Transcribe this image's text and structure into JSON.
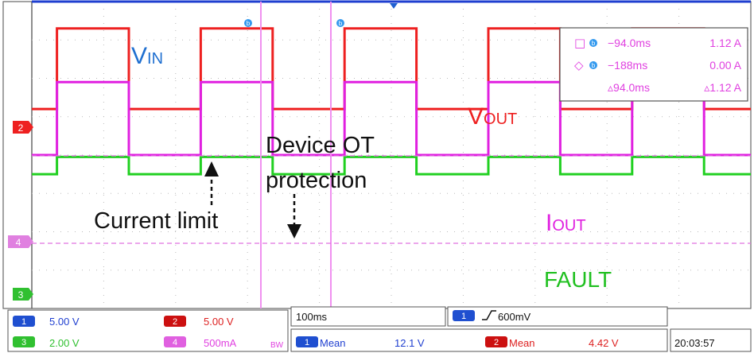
{
  "chart_data": {
    "type": "line",
    "time_per_div": "100ms",
    "divisions": 10,
    "series": [
      {
        "name": "VIN",
        "channel": 1,
        "color": "#1f3fd0",
        "values_div": [
          [
            0,
            4.0
          ],
          [
            10,
            4.0
          ]
        ]
      },
      {
        "name": "VOUT",
        "channel": 2,
        "color": "#ee2020",
        "values_div": [
          [
            0,
            1.2
          ],
          [
            0.35,
            1.2
          ],
          [
            0.35,
            3.3
          ],
          [
            1.35,
            3.3
          ],
          [
            1.35,
            1.2
          ],
          [
            2.35,
            1.2
          ],
          [
            2.35,
            3.3
          ],
          [
            3.35,
            3.3
          ],
          [
            3.35,
            1.2
          ],
          [
            4.35,
            1.2
          ],
          [
            4.35,
            3.3
          ],
          [
            5.35,
            3.3
          ],
          [
            5.35,
            1.2
          ],
          [
            6.35,
            1.2
          ],
          [
            6.35,
            3.3
          ],
          [
            7.35,
            3.3
          ],
          [
            7.35,
            1.2
          ],
          [
            8.35,
            1.2
          ],
          [
            8.35,
            3.3
          ],
          [
            9.35,
            3.3
          ],
          [
            9.35,
            1.2
          ],
          [
            10,
            1.2
          ]
        ]
      },
      {
        "name": "IOUT",
        "channel": 4,
        "color": "#e020e0",
        "values_div": [
          [
            0,
            0.0
          ],
          [
            0.35,
            0.0
          ],
          [
            0.35,
            1.9
          ],
          [
            1.35,
            1.9
          ],
          [
            1.35,
            0.0
          ],
          [
            2.35,
            0.0
          ],
          [
            2.35,
            1.9
          ],
          [
            3.35,
            1.9
          ],
          [
            3.35,
            0.0
          ],
          [
            4.35,
            0.0
          ],
          [
            4.35,
            1.9
          ],
          [
            5.35,
            1.9
          ],
          [
            5.35,
            0.0
          ],
          [
            6.35,
            0.0
          ],
          [
            6.35,
            1.9
          ],
          [
            7.35,
            1.9
          ],
          [
            7.35,
            0.0
          ],
          [
            8.35,
            0.0
          ],
          [
            8.35,
            1.9
          ],
          [
            9.35,
            1.9
          ],
          [
            9.35,
            0.0
          ],
          [
            10,
            0.0
          ]
        ]
      },
      {
        "name": "FAULT",
        "channel": 3,
        "color": "#20d020",
        "values_div": [
          [
            0,
            -0.5
          ],
          [
            0.35,
            -0.5
          ],
          [
            0.35,
            -0.05
          ],
          [
            1.35,
            -0.05
          ],
          [
            1.35,
            -0.5
          ],
          [
            2.35,
            -0.5
          ],
          [
            2.35,
            -0.05
          ],
          [
            3.35,
            -0.05
          ],
          [
            3.35,
            -0.5
          ],
          [
            4.35,
            -0.5
          ],
          [
            4.35,
            -0.05
          ],
          [
            5.35,
            -0.05
          ],
          [
            5.35,
            -0.5
          ],
          [
            6.35,
            -0.5
          ],
          [
            6.35,
            -0.05
          ],
          [
            7.35,
            -0.05
          ],
          [
            7.35,
            -0.5
          ],
          [
            8.35,
            -0.5
          ],
          [
            8.35,
            -0.05
          ],
          [
            9.35,
            -0.05
          ],
          [
            9.35,
            -0.5
          ],
          [
            10,
            -0.5
          ]
        ]
      }
    ],
    "trace_labels": [
      {
        "key": "vin",
        "main": "V",
        "sub": "IN",
        "color": "#1f6fd0"
      },
      {
        "key": "vout",
        "main": "V",
        "sub": "OUT",
        "color": "#ee2020"
      },
      {
        "key": "iout",
        "main": "I",
        "sub": "OUT",
        "color": "#e020e0"
      },
      {
        "key": "fault",
        "main": "FAULT",
        "sub": "",
        "color": "#20c020"
      }
    ],
    "annotations": {
      "current_limit": "Current limit",
      "device_ot_line1": "Device OT",
      "device_ot_line2": "protection"
    },
    "channel_markers": [
      {
        "channel": "2",
        "color": "#ee2020"
      },
      {
        "channel": "4",
        "color": "#e060e0"
      },
      {
        "channel": "3",
        "color": "#20c020"
      }
    ],
    "cursor_markers": [
      "b",
      "b"
    ],
    "cursor_readout": {
      "rows": [
        {
          "sym": "□",
          "ch": "b",
          "time": "−94.0ms",
          "value": "1.12 A"
        },
        {
          "sym": "◇",
          "ch": "b",
          "time": "−188ms",
          "value": "0.00 A"
        },
        {
          "sym": "",
          "ch": "",
          "time": "▵94.0ms",
          "value": "▵1.12 A"
        }
      ]
    }
  },
  "status_bar": {
    "ch1_scale": "5.00 V",
    "ch2_scale": "5.00 V",
    "ch3_scale": "2.00 V",
    "ch4_scale": "500mA",
    "ch4_bw": "BW",
    "ch1_num": "1",
    "ch2_num": "2",
    "ch3_num": "3",
    "ch4_num": "4",
    "timebase": "100ms",
    "trigger_ch": "1",
    "trigger_level": "600mV",
    "meas1_ch": "1",
    "meas1_label": "Mean",
    "meas1_value": "12.1 V",
    "meas2_ch": "2",
    "meas2_label": "Mean",
    "meas2_value": "4.42 V",
    "clock": "20:03:57"
  }
}
